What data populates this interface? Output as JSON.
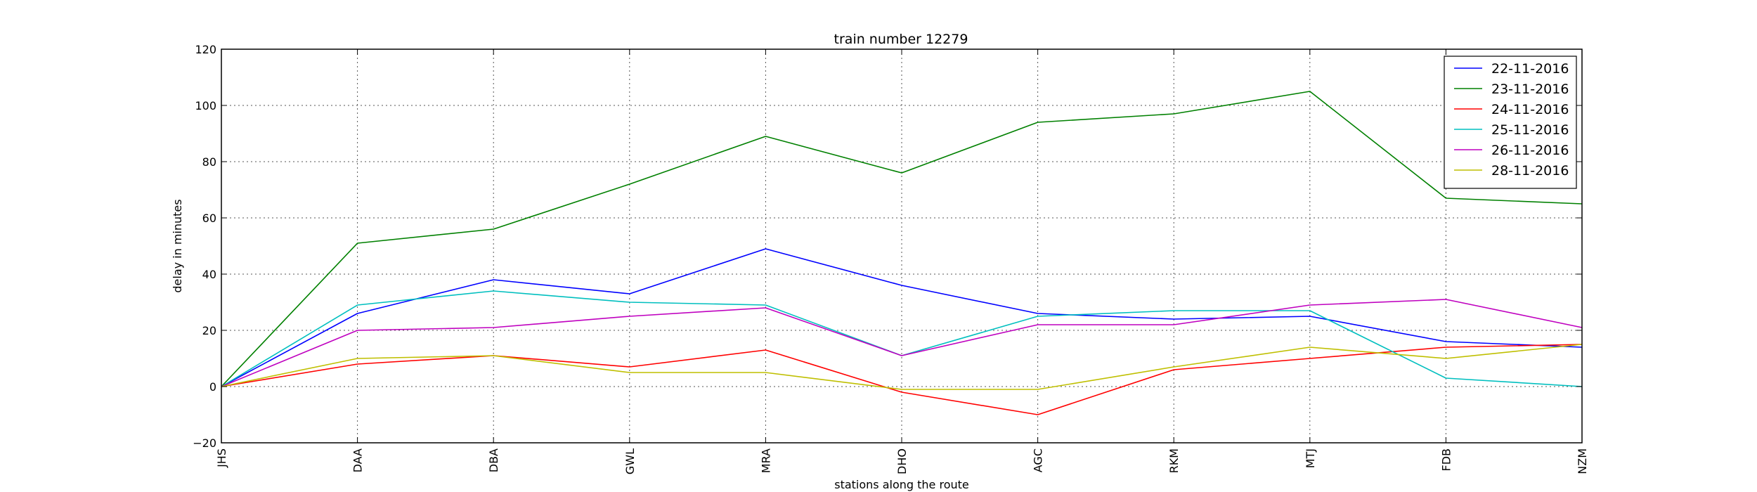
{
  "chart_data": {
    "type": "line",
    "title": "train number 12279",
    "xlabel": "stations along the route",
    "ylabel": "delay in minutes",
    "categories": [
      "JHS",
      "DAA",
      "DBA",
      "GWL",
      "MRA",
      "DHO",
      "AGC",
      "RKM",
      "MTJ",
      "FDB",
      "NZM"
    ],
    "ylim": [
      -20,
      120
    ],
    "yticks": [
      -20,
      0,
      20,
      40,
      60,
      80,
      100,
      120
    ],
    "grid": true,
    "legend_position": "top-right",
    "series": [
      {
        "name": "22-11-2016",
        "color": "#0000ff",
        "values": [
          0,
          26,
          38,
          33,
          49,
          36,
          26,
          24,
          25,
          16,
          14
        ]
      },
      {
        "name": "23-11-2016",
        "color": "#008000",
        "values": [
          0,
          51,
          56,
          72,
          89,
          76,
          94,
          97,
          105,
          67,
          65
        ]
      },
      {
        "name": "24-11-2016",
        "color": "#ff0000",
        "values": [
          0,
          8,
          11,
          7,
          13,
          -2,
          -10,
          6,
          10,
          14,
          15
        ]
      },
      {
        "name": "25-11-2016",
        "color": "#00bfbf",
        "values": [
          0,
          29,
          34,
          30,
          29,
          11,
          25,
          27,
          27,
          3,
          0
        ]
      },
      {
        "name": "26-11-2016",
        "color": "#bf00bf",
        "values": [
          0,
          20,
          21,
          25,
          28,
          11,
          22,
          22,
          29,
          31,
          21
        ]
      },
      {
        "name": "28-11-2016",
        "color": "#bfbf00",
        "values": [
          0,
          10,
          11,
          5,
          5,
          -1,
          -1,
          7,
          14,
          10,
          15
        ]
      }
    ]
  }
}
